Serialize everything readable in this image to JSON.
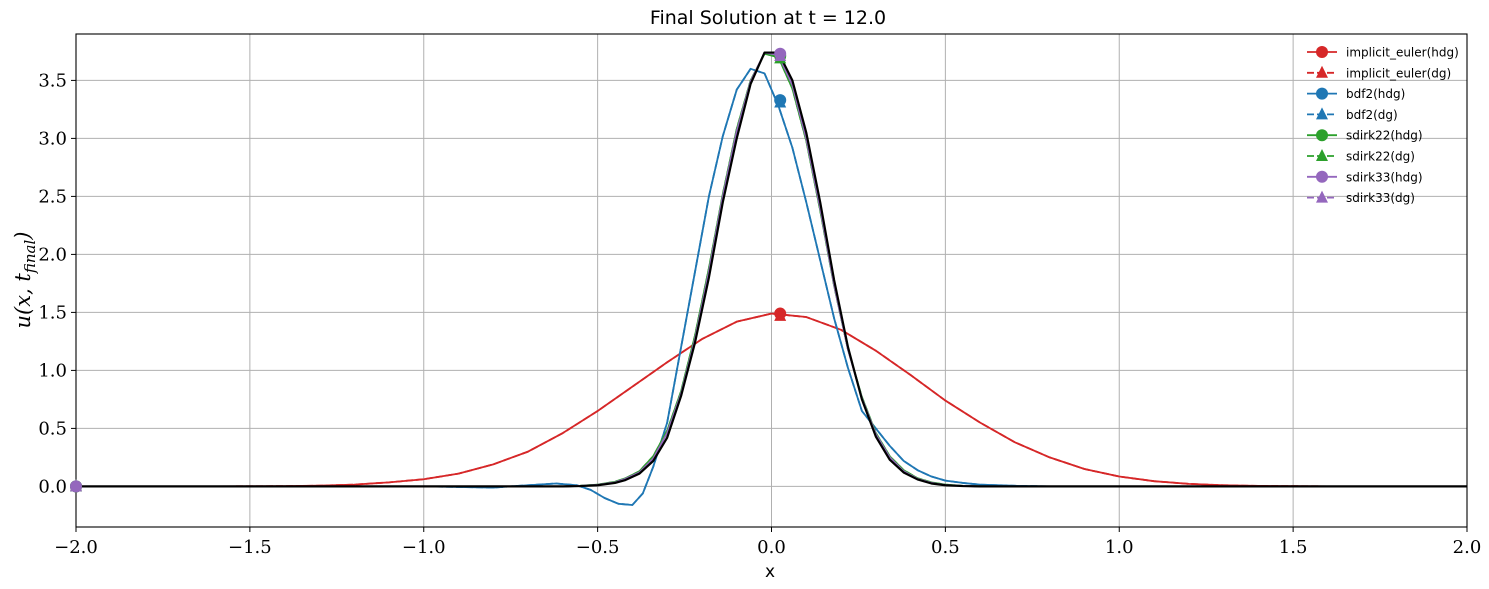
{
  "chart_data": {
    "type": "line",
    "title": "Final Solution at t = 12.0",
    "xlabel": "x",
    "ylabel": "u(x, t_final)",
    "ylabel_main": "u(x, t",
    "ylabel_sub": "final",
    "ylabel_end": ")",
    "xlim": [
      -2.0,
      2.0
    ],
    "ylim": [
      -0.35,
      3.9
    ],
    "xticks": [
      -2.0,
      -1.5,
      -1.0,
      -0.5,
      0.0,
      0.5,
      1.0,
      1.5,
      2.0
    ],
    "xtick_labels": [
      "−2.0",
      "−1.5",
      "−1.0",
      "−0.5",
      "0.0",
      "0.5",
      "1.0",
      "1.5",
      "2.0"
    ],
    "yticks": [
      0.0,
      0.5,
      1.0,
      1.5,
      2.0,
      2.5,
      3.0,
      3.5
    ],
    "ytick_labels": [
      "0.0",
      "0.5",
      "1.0",
      "1.5",
      "2.0",
      "2.5",
      "3.0",
      "3.5"
    ],
    "grid": true,
    "legend_position": "top-right",
    "series": [
      {
        "name": "implicit_euler(hdg)",
        "color": "#d62728",
        "style": "solid",
        "marker": "circle",
        "x": [
          -2.0,
          -1.8,
          -1.6,
          -1.4,
          -1.3,
          -1.2,
          -1.1,
          -1.0,
          -0.9,
          -0.8,
          -0.7,
          -0.6,
          -0.5,
          -0.4,
          -0.3,
          -0.2,
          -0.1,
          0.0,
          0.1,
          0.2,
          0.3,
          0.4,
          0.5,
          0.6,
          0.7,
          0.8,
          0.9,
          1.0,
          1.1,
          1.2,
          1.3,
          1.4,
          1.6,
          1.8,
          2.0
        ],
        "y": [
          0.0,
          0.0,
          0.0,
          0.002,
          0.006,
          0.015,
          0.035,
          0.062,
          0.11,
          0.19,
          0.3,
          0.46,
          0.65,
          0.86,
          1.07,
          1.27,
          1.42,
          1.49,
          1.46,
          1.35,
          1.17,
          0.96,
          0.74,
          0.55,
          0.38,
          0.25,
          0.15,
          0.085,
          0.045,
          0.022,
          0.01,
          0.004,
          0.0,
          0.0,
          0.0
        ],
        "markers_x": [
          -2.0,
          0.025
        ],
        "markers_y": [
          0.0,
          1.49
        ]
      },
      {
        "name": "implicit_euler(dg)",
        "color": "#d62728",
        "style": "dashed",
        "marker": "triangle",
        "x": [
          -2.0,
          -1.8,
          -1.6,
          -1.4,
          -1.3,
          -1.2,
          -1.1,
          -1.0,
          -0.9,
          -0.8,
          -0.7,
          -0.6,
          -0.5,
          -0.4,
          -0.3,
          -0.2,
          -0.1,
          0.0,
          0.1,
          0.2,
          0.3,
          0.4,
          0.5,
          0.6,
          0.7,
          0.8,
          0.9,
          1.0,
          1.1,
          1.2,
          1.3,
          1.4,
          1.6,
          1.8,
          2.0
        ],
        "y": [
          0.0,
          0.0,
          0.0,
          0.002,
          0.006,
          0.015,
          0.035,
          0.062,
          0.11,
          0.19,
          0.3,
          0.46,
          0.65,
          0.86,
          1.07,
          1.27,
          1.42,
          1.49,
          1.46,
          1.35,
          1.17,
          0.96,
          0.74,
          0.55,
          0.38,
          0.25,
          0.15,
          0.085,
          0.045,
          0.022,
          0.01,
          0.004,
          0.0,
          0.0,
          0.0
        ],
        "markers_x": [
          -2.0,
          0.025
        ],
        "markers_y": [
          0.0,
          1.47
        ]
      },
      {
        "name": "bdf2(hdg)",
        "color": "#1f77b4",
        "style": "solid",
        "marker": "circle",
        "x": [
          -2.0,
          -1.0,
          -0.8,
          -0.7,
          -0.62,
          -0.56,
          -0.52,
          -0.48,
          -0.44,
          -0.4,
          -0.37,
          -0.34,
          -0.3,
          -0.26,
          -0.22,
          -0.18,
          -0.14,
          -0.1,
          -0.06,
          -0.02,
          0.02,
          0.06,
          0.1,
          0.14,
          0.18,
          0.22,
          0.26,
          0.3,
          0.34,
          0.38,
          0.42,
          0.46,
          0.5,
          0.55,
          0.6,
          0.7,
          0.8,
          1.0,
          2.0
        ],
        "y": [
          0.0,
          0.0,
          -0.01,
          0.01,
          0.025,
          0.01,
          -0.03,
          -0.1,
          -0.15,
          -0.16,
          -0.06,
          0.17,
          0.55,
          1.2,
          1.85,
          2.5,
          3.02,
          3.42,
          3.6,
          3.56,
          3.28,
          2.92,
          2.45,
          1.95,
          1.45,
          1.02,
          0.65,
          0.5,
          0.35,
          0.22,
          0.14,
          0.085,
          0.05,
          0.03,
          0.015,
          0.005,
          0.0,
          0.0,
          0.0
        ],
        "markers_x": [
          -2.0,
          0.025
        ],
        "markers_y": [
          0.0,
          3.33
        ]
      },
      {
        "name": "bdf2(dg)",
        "color": "#1f77b4",
        "style": "dashed",
        "marker": "triangle",
        "x": [
          -2.0,
          -1.0,
          -0.8,
          -0.7,
          -0.62,
          -0.56,
          -0.52,
          -0.48,
          -0.44,
          -0.4,
          -0.37,
          -0.34,
          -0.3,
          -0.26,
          -0.22,
          -0.18,
          -0.14,
          -0.1,
          -0.06,
          -0.02,
          0.02,
          0.06,
          0.1,
          0.14,
          0.18,
          0.22,
          0.26,
          0.3,
          0.34,
          0.38,
          0.42,
          0.46,
          0.5,
          0.55,
          0.6,
          0.7,
          0.8,
          1.0,
          2.0
        ],
        "y": [
          0.0,
          0.0,
          -0.01,
          0.01,
          0.025,
          0.01,
          -0.03,
          -0.1,
          -0.15,
          -0.16,
          -0.06,
          0.17,
          0.55,
          1.2,
          1.85,
          2.5,
          3.02,
          3.42,
          3.6,
          3.56,
          3.28,
          2.92,
          2.45,
          1.95,
          1.45,
          1.02,
          0.65,
          0.5,
          0.35,
          0.22,
          0.14,
          0.085,
          0.05,
          0.03,
          0.015,
          0.005,
          0.0,
          0.0,
          0.0
        ],
        "markers_x": [
          -2.0,
          0.025
        ],
        "markers_y": [
          0.0,
          3.31
        ]
      },
      {
        "name": "sdirk22(hdg)",
        "color": "#2ca02c",
        "style": "solid",
        "marker": "circle",
        "x": [
          -2.0,
          -0.6,
          -0.55,
          -0.5,
          -0.45,
          -0.42,
          -0.38,
          -0.34,
          -0.3,
          -0.26,
          -0.22,
          -0.18,
          -0.14,
          -0.1,
          -0.06,
          -0.02,
          0.02,
          0.06,
          0.1,
          0.14,
          0.18,
          0.22,
          0.26,
          0.3,
          0.34,
          0.38,
          0.42,
          0.46,
          0.5,
          0.55,
          0.6,
          2.0
        ],
        "y": [
          0.0,
          0.0,
          0.005,
          0.015,
          0.04,
          0.07,
          0.13,
          0.26,
          0.48,
          0.82,
          1.3,
          1.88,
          2.52,
          3.08,
          3.5,
          3.73,
          3.7,
          3.43,
          2.98,
          2.38,
          1.73,
          1.18,
          0.77,
          0.46,
          0.26,
          0.14,
          0.07,
          0.035,
          0.015,
          0.005,
          0.0,
          0.0
        ],
        "markers_x": [
          -2.0,
          0.025
        ],
        "markers_y": [
          0.0,
          3.71
        ]
      },
      {
        "name": "sdirk22(dg)",
        "color": "#2ca02c",
        "style": "dashed",
        "marker": "triangle",
        "x": [
          -2.0,
          -0.6,
          -0.55,
          -0.5,
          -0.45,
          -0.42,
          -0.38,
          -0.34,
          -0.3,
          -0.26,
          -0.22,
          -0.18,
          -0.14,
          -0.1,
          -0.06,
          -0.02,
          0.02,
          0.06,
          0.1,
          0.14,
          0.18,
          0.22,
          0.26,
          0.3,
          0.34,
          0.38,
          0.42,
          0.46,
          0.5,
          0.55,
          0.6,
          2.0
        ],
        "y": [
          0.0,
          0.0,
          0.005,
          0.015,
          0.04,
          0.07,
          0.13,
          0.26,
          0.48,
          0.82,
          1.3,
          1.88,
          2.52,
          3.08,
          3.5,
          3.73,
          3.7,
          3.43,
          2.98,
          2.38,
          1.73,
          1.18,
          0.77,
          0.46,
          0.26,
          0.14,
          0.07,
          0.035,
          0.015,
          0.005,
          0.0,
          0.0
        ],
        "markers_x": [
          -2.0,
          0.025
        ],
        "markers_y": [
          0.0,
          3.69
        ]
      },
      {
        "name": "sdirk33(hdg)",
        "color": "#9467bd",
        "style": "solid",
        "marker": "circle",
        "x": [
          -2.0,
          -0.6,
          -0.55,
          -0.5,
          -0.45,
          -0.42,
          -0.38,
          -0.34,
          -0.3,
          -0.26,
          -0.22,
          -0.18,
          -0.14,
          -0.1,
          -0.06,
          -0.02,
          0.02,
          0.06,
          0.1,
          0.14,
          0.18,
          0.22,
          0.26,
          0.3,
          0.34,
          0.38,
          0.42,
          0.46,
          0.5,
          0.55,
          0.6,
          2.0
        ],
        "y": [
          0.0,
          0.0,
          0.004,
          0.013,
          0.035,
          0.065,
          0.12,
          0.24,
          0.46,
          0.8,
          1.27,
          1.85,
          2.5,
          3.06,
          3.49,
          3.74,
          3.72,
          3.46,
          3.0,
          2.4,
          1.74,
          1.18,
          0.76,
          0.45,
          0.25,
          0.13,
          0.065,
          0.03,
          0.012,
          0.004,
          0.0,
          0.0
        ],
        "markers_x": [
          -2.0,
          0.025
        ],
        "markers_y": [
          0.0,
          3.73
        ]
      },
      {
        "name": "sdirk33(dg)",
        "color": "#9467bd",
        "style": "dashed",
        "marker": "triangle",
        "x": [
          -2.0,
          -0.6,
          -0.55,
          -0.5,
          -0.45,
          -0.42,
          -0.38,
          -0.34,
          -0.3,
          -0.26,
          -0.22,
          -0.18,
          -0.14,
          -0.1,
          -0.06,
          -0.02,
          0.02,
          0.06,
          0.1,
          0.14,
          0.18,
          0.22,
          0.26,
          0.3,
          0.34,
          0.38,
          0.42,
          0.46,
          0.5,
          0.55,
          0.6,
          2.0
        ],
        "y": [
          0.0,
          0.0,
          0.004,
          0.013,
          0.035,
          0.065,
          0.12,
          0.24,
          0.46,
          0.8,
          1.27,
          1.85,
          2.5,
          3.06,
          3.49,
          3.74,
          3.72,
          3.46,
          3.0,
          2.4,
          1.74,
          1.18,
          0.76,
          0.45,
          0.25,
          0.13,
          0.065,
          0.03,
          0.012,
          0.004,
          0.0,
          0.0
        ],
        "markers_x": [
          -2.0,
          0.025
        ],
        "markers_y": [
          0.0,
          3.71
        ]
      },
      {
        "name": "",
        "color": "#000000",
        "style": "solid",
        "marker": "none",
        "legend": false,
        "x": [
          -2.0,
          -0.6,
          -0.55,
          -0.5,
          -0.45,
          -0.42,
          -0.38,
          -0.34,
          -0.3,
          -0.26,
          -0.22,
          -0.18,
          -0.14,
          -0.1,
          -0.06,
          -0.02,
          0.02,
          0.06,
          0.1,
          0.14,
          0.18,
          0.22,
          0.26,
          0.3,
          0.34,
          0.38,
          0.42,
          0.46,
          0.5,
          0.55,
          0.6,
          2.0
        ],
        "y": [
          0.0,
          0.0,
          0.003,
          0.01,
          0.03,
          0.055,
          0.11,
          0.22,
          0.42,
          0.78,
          1.24,
          1.8,
          2.45,
          3.0,
          3.47,
          3.74,
          3.74,
          3.5,
          3.05,
          2.45,
          1.78,
          1.2,
          0.75,
          0.43,
          0.23,
          0.12,
          0.06,
          0.025,
          0.01,
          0.003,
          0.0,
          0.0
        ]
      }
    ]
  }
}
